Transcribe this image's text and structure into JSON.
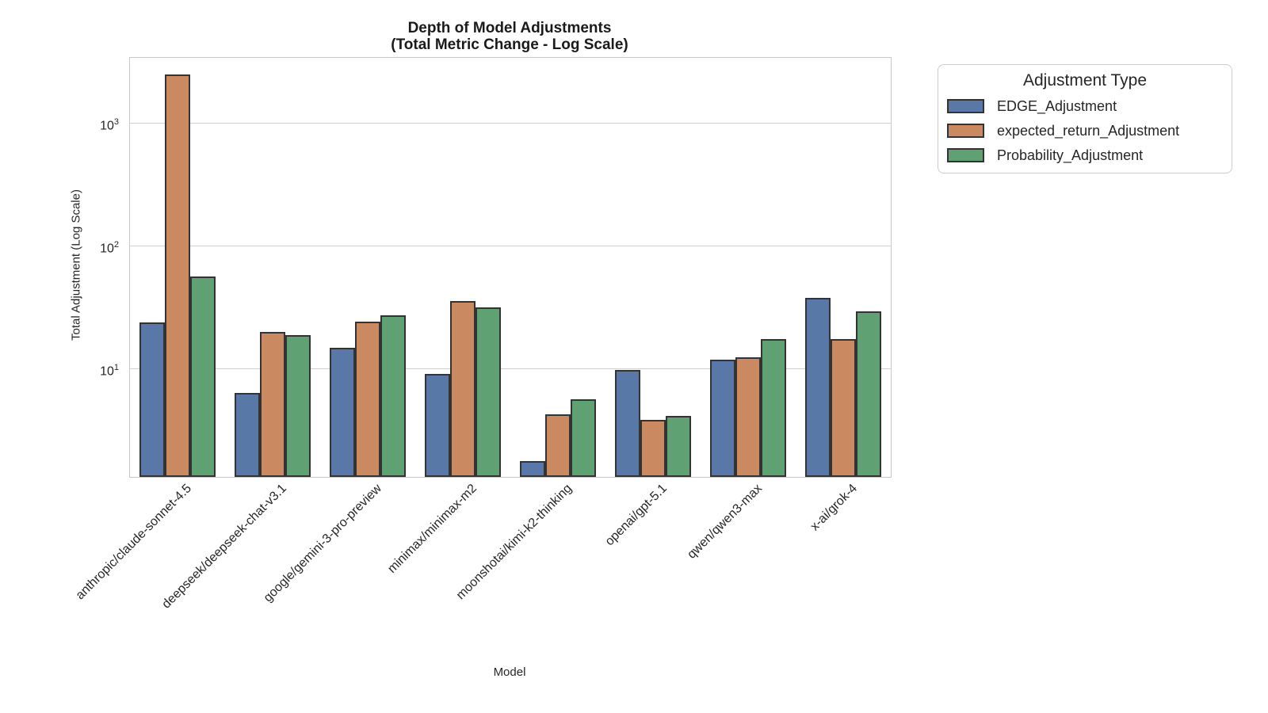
{
  "chart_data": {
    "type": "bar",
    "title": "Depth of Model Adjustments",
    "subtitle": "(Total Metric Change - Log Scale)",
    "xlabel": "Model",
    "ylabel": "Total Adjustment (Log Scale)",
    "yscale": "log",
    "ylim": [
      1.33,
      3430
    ],
    "yticks": [
      10,
      100,
      1000
    ],
    "grid": "horizontal",
    "legend_position": "outside-upper-right",
    "legend_title": "Adjustment Type",
    "categories": [
      "anthropic/claude-sonnet-4.5",
      "deepseek/deepseek-chat-v3.1",
      "google/gemini-3-pro-preview",
      "minimax/minimax-m2",
      "moonshotai/kimi-k2-thinking",
      "openai/gpt-5.1",
      "qwen/qwen3-max",
      "x-ai/grok-4"
    ],
    "series": [
      {
        "name": "EDGE_Adjustment",
        "color": "#5878A8",
        "values": [
          24,
          6.4,
          15,
          9.2,
          1.8,
          9.8,
          12,
          38
        ]
      },
      {
        "name": "expected_return_Adjustment",
        "color": "#CB8962",
        "values": [
          2500,
          20,
          24.5,
          36,
          4.3,
          3.9,
          12.5,
          17.5
        ]
      },
      {
        "name": "Probability_Adjustment",
        "color": "#5FA172",
        "values": [
          57,
          19,
          27.5,
          32,
          5.7,
          4.2,
          17.5,
          29.5
        ]
      }
    ],
    "bar_edge_color": "#333333"
  },
  "colors": {
    "grid": "#cfcfcf",
    "spine": "#c8c8c8",
    "text": "#262626"
  }
}
